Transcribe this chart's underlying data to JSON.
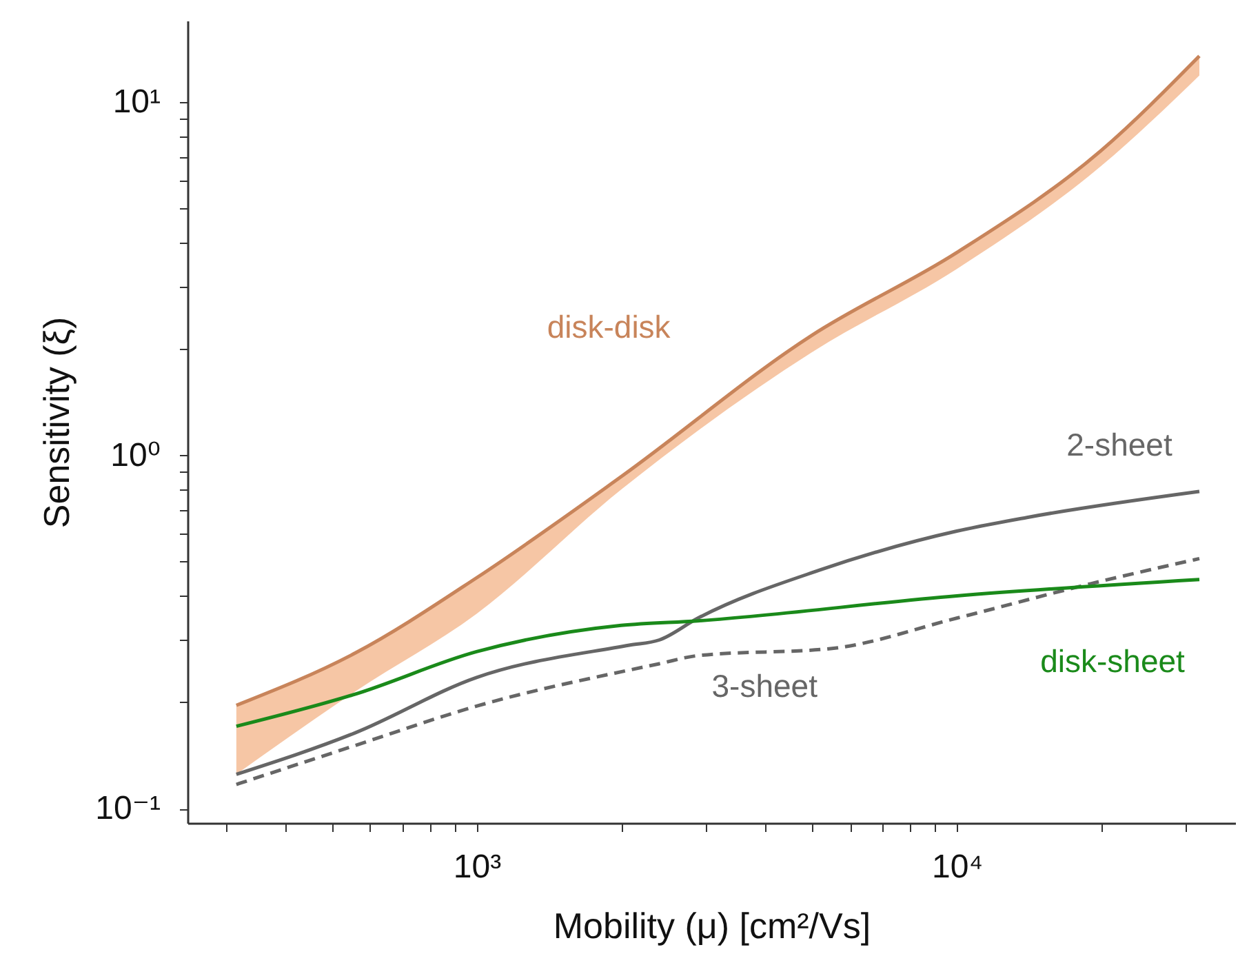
{
  "chart_data": {
    "type": "line",
    "xlabel": "Mobility (μ) [cm²/Vs]",
    "ylabel": "Sensitivity (ξ)",
    "log": "xy",
    "grid": false,
    "xlim": [
      250,
      38000
    ],
    "ylim": [
      0.091,
      17
    ],
    "xticks": [
      {
        "value": 300,
        "label": null
      },
      {
        "value": 400,
        "label": null
      },
      {
        "value": 500,
        "label": null
      },
      {
        "value": 600,
        "label": null
      },
      {
        "value": 700,
        "label": null
      },
      {
        "value": 800,
        "label": null
      },
      {
        "value": 900,
        "label": null
      },
      {
        "value": 1000,
        "label": "10³"
      },
      {
        "value": 2000,
        "label": null
      },
      {
        "value": 3000,
        "label": null
      },
      {
        "value": 4000,
        "label": null
      },
      {
        "value": 5000,
        "label": null
      },
      {
        "value": 6000,
        "label": null
      },
      {
        "value": 7000,
        "label": null
      },
      {
        "value": 8000,
        "label": null
      },
      {
        "value": 9000,
        "label": null
      },
      {
        "value": 10000,
        "label": "10⁴"
      },
      {
        "value": 20000,
        "label": null
      },
      {
        "value": 30000,
        "label": null
      }
    ],
    "yticks": [
      {
        "value": 0.1,
        "label": "10⁻¹"
      },
      {
        "value": 0.2,
        "label": null
      },
      {
        "value": 0.3,
        "label": null
      },
      {
        "value": 0.4,
        "label": null
      },
      {
        "value": 0.5,
        "label": null
      },
      {
        "value": 0.6,
        "label": null
      },
      {
        "value": 0.7,
        "label": null
      },
      {
        "value": 0.8,
        "label": null
      },
      {
        "value": 0.9,
        "label": null
      },
      {
        "value": 1,
        "label": "10⁰"
      },
      {
        "value": 2,
        "label": null
      },
      {
        "value": 3,
        "label": null
      },
      {
        "value": 4,
        "label": null
      },
      {
        "value": 5,
        "label": null
      },
      {
        "value": 6,
        "label": null
      },
      {
        "value": 7,
        "label": null
      },
      {
        "value": 8,
        "label": null
      },
      {
        "value": 9,
        "label": null
      },
      {
        "value": 10,
        "label": "10¹"
      }
    ],
    "series": [
      {
        "name": "disk-disk",
        "color": "#c8845a",
        "line_style": "solid",
        "x": [
          316,
          560,
          1000,
          2000,
          5000,
          10000,
          20000,
          32000
        ],
        "lower": [
          0.125,
          0.215,
          0.356,
          0.8,
          1.96,
          3.37,
          6.6,
          11.9
        ],
        "upper": [
          0.196,
          0.276,
          0.45,
          0.87,
          2.19,
          3.75,
          7.3,
          13.5
        ],
        "values": [
          0.196,
          0.276,
          0.45,
          0.87,
          2.19,
          3.75,
          7.3,
          13.5
        ]
      },
      {
        "name": "2-sheet",
        "color": "#666666",
        "line_style": "solid",
        "x": [
          316,
          560,
          1000,
          2080,
          2400,
          2890,
          5200,
          10000,
          14000,
          32000
        ],
        "values": [
          0.125,
          0.164,
          0.235,
          0.29,
          0.3,
          0.346,
          0.474,
          0.61,
          0.667,
          0.79
        ]
      },
      {
        "name": "3-sheet",
        "color": "#666666",
        "line_style": "dashed",
        "x": [
          316,
          560,
          1000,
          2400,
          2890,
          5500,
          10000,
          19000,
          32000
        ],
        "values": [
          0.117,
          0.151,
          0.195,
          0.257,
          0.271,
          0.284,
          0.346,
          0.433,
          0.51
        ]
      },
      {
        "name": "disk-sheet",
        "color": "#1a8a1a",
        "line_style": "solid",
        "x": [
          316,
          560,
          1000,
          2000,
          2890,
          10000,
          32000
        ],
        "values": [
          0.171,
          0.211,
          0.278,
          0.33,
          0.34,
          0.4,
          0.445
        ]
      }
    ]
  }
}
